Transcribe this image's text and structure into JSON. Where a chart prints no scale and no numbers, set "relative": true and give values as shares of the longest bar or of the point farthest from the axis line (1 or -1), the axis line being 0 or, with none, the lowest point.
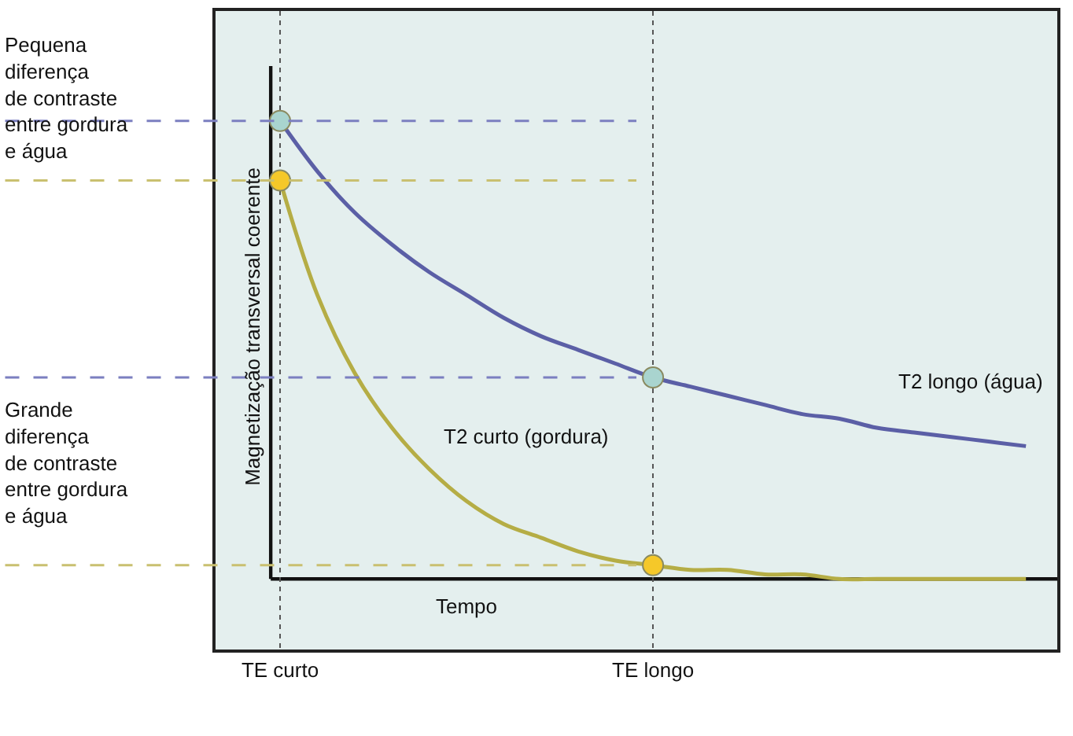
{
  "chart_data": {
    "type": "line",
    "relative": true,
    "xlabel": "Tempo",
    "ylabel": "Magnetização transversal coerente",
    "categories": [
      "TE curto",
      null,
      null,
      null,
      null,
      null,
      null,
      null,
      null,
      null,
      "TE longo",
      null,
      null,
      null,
      null,
      null,
      null,
      null,
      null,
      null,
      null
    ],
    "series": [
      {
        "name": "T2 longo (água)",
        "color": "#5b5fa6",
        "values": [
          1.0,
          0.89,
          0.8,
          0.73,
          0.67,
          0.62,
          0.57,
          0.53,
          0.5,
          0.47,
          0.44,
          0.42,
          0.4,
          0.38,
          0.36,
          0.35,
          0.33,
          0.32,
          0.31,
          0.3,
          0.29
        ]
      },
      {
        "name": "T2 curto (gordura)",
        "color": "#b5ad45",
        "values": [
          0.87,
          0.62,
          0.45,
          0.33,
          0.24,
          0.17,
          0.12,
          0.09,
          0.06,
          0.04,
          0.03,
          0.02,
          0.02,
          0.01,
          0.01,
          0.0,
          0.0,
          0.0,
          0.0,
          0.0,
          0.0
        ]
      },
      {
        "type": "scatter",
        "marker": "circle",
        "color": "#a9d4cf",
        "values": [
          1.0,
          null,
          null,
          null,
          null,
          null,
          null,
          null,
          null,
          null,
          0.44,
          null,
          null,
          null,
          null,
          null,
          null,
          null,
          null,
          null,
          null
        ]
      },
      {
        "type": "scatter",
        "marker": "circle",
        "color": "#f5c829",
        "values": [
          0.87,
          null,
          null,
          null,
          null,
          null,
          null,
          null,
          null,
          null,
          0.03,
          null,
          null,
          null,
          null,
          null,
          null,
          null,
          null,
          null,
          null
        ]
      }
    ],
    "ref_lines": [
      {
        "axis": "y",
        "value": 1.0,
        "color": "#7b7fc0",
        "line_style": "dashed"
      },
      {
        "axis": "y",
        "value": 0.87,
        "color": "#c9c070",
        "line_style": "dashed"
      },
      {
        "axis": "y",
        "value": 0.44,
        "color": "#7b7fc0",
        "line_style": "dashed"
      },
      {
        "axis": "y",
        "value": 0.03,
        "color": "#c9c070",
        "line_style": "dashed"
      }
    ],
    "annotations": [
      "Pequena\ndiferença\nde contraste\nentre gordura\ne água",
      "Grande\ndiferença\nde contraste\nentre gordura\ne água"
    ],
    "grid": "x",
    "legend": false
  }
}
